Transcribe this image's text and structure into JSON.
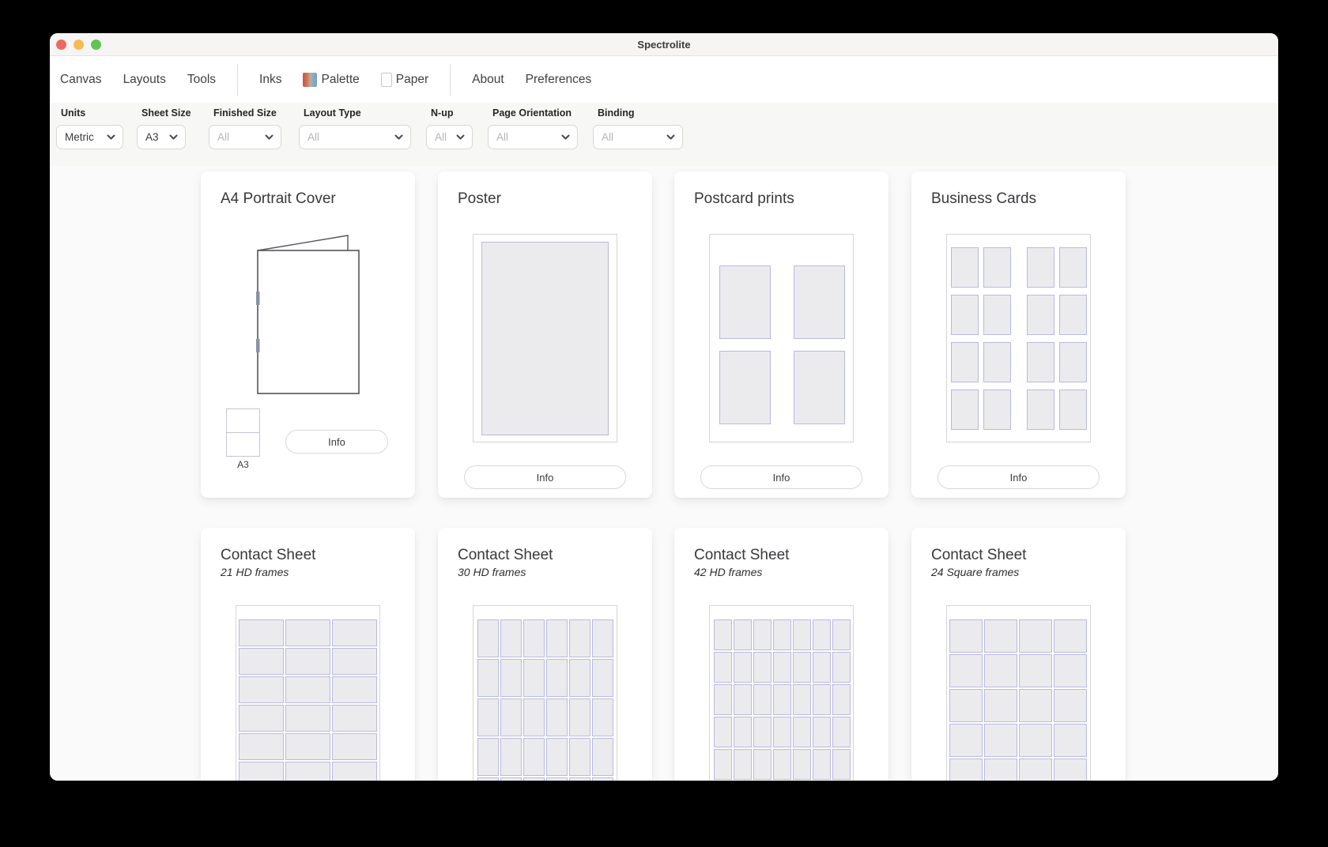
{
  "window": {
    "title": "Spectrolite"
  },
  "menu": {
    "canvas": "Canvas",
    "layouts": "Layouts",
    "tools": "Tools",
    "inks": "Inks",
    "palette": "Palette",
    "paper": "Paper",
    "about": "About",
    "preferences": "Preferences"
  },
  "filters": {
    "units": {
      "label": "Units",
      "value": "Metric"
    },
    "sheet_size": {
      "label": "Sheet Size",
      "value": "A3"
    },
    "finished_size": {
      "label": "Finished Size",
      "value": "All"
    },
    "layout_type": {
      "label": "Layout Type",
      "value": "All"
    },
    "n_up": {
      "label": "N-up",
      "value": "All"
    },
    "page_orientation": {
      "label": "Page Orientation",
      "value": "All"
    },
    "binding": {
      "label": "Binding",
      "value": "All"
    }
  },
  "cards": {
    "a4_portrait_cover": {
      "title": "A4 Portrait Cover",
      "sheet_label": "A3",
      "info_label": "Info"
    },
    "poster": {
      "title": "Poster",
      "info_label": "Info",
      "frames": 1
    },
    "postcard_prints": {
      "title": "Postcard prints",
      "info_label": "Info",
      "grid": {
        "cols": 2,
        "rows": 2
      }
    },
    "business_cards": {
      "title": "Business Cards",
      "info_label": "Info",
      "grid": {
        "cols": 4,
        "rows": 4
      }
    },
    "contact_sheet_21": {
      "title": "Contact Sheet",
      "subtitle": "21 HD frames",
      "grid": {
        "cols": 3,
        "rows": 7
      }
    },
    "contact_sheet_30": {
      "title": "Contact Sheet",
      "subtitle": "30 HD frames",
      "grid": {
        "cols": 6,
        "rows": 5
      }
    },
    "contact_sheet_42": {
      "title": "Contact Sheet",
      "subtitle": "42 HD frames",
      "grid": {
        "cols": 7,
        "rows": 6
      }
    },
    "contact_sheet_24": {
      "title": "Contact Sheet",
      "subtitle": "24 Square frames",
      "grid": {
        "cols": 4,
        "rows": 6
      }
    }
  },
  "icons": {
    "traffic_lights": [
      "close-red",
      "minimize-yellow",
      "zoom-green"
    ],
    "palette_icon": "striped color swatch",
    "paper_icon": "blank page outline",
    "chevron_down_icon": "dropdown chevron"
  },
  "colors": {
    "traffic_red": "#ee6a5f",
    "traffic_yellow": "#f5bd4f",
    "traffic_green": "#61c454",
    "frame_border": "#b9b9e0",
    "frame_fill": "#ebebee",
    "staple": "#8a92a4",
    "palette_swatch": [
      "#bf5b4d",
      "#df8a60",
      "#87a9c0"
    ]
  }
}
